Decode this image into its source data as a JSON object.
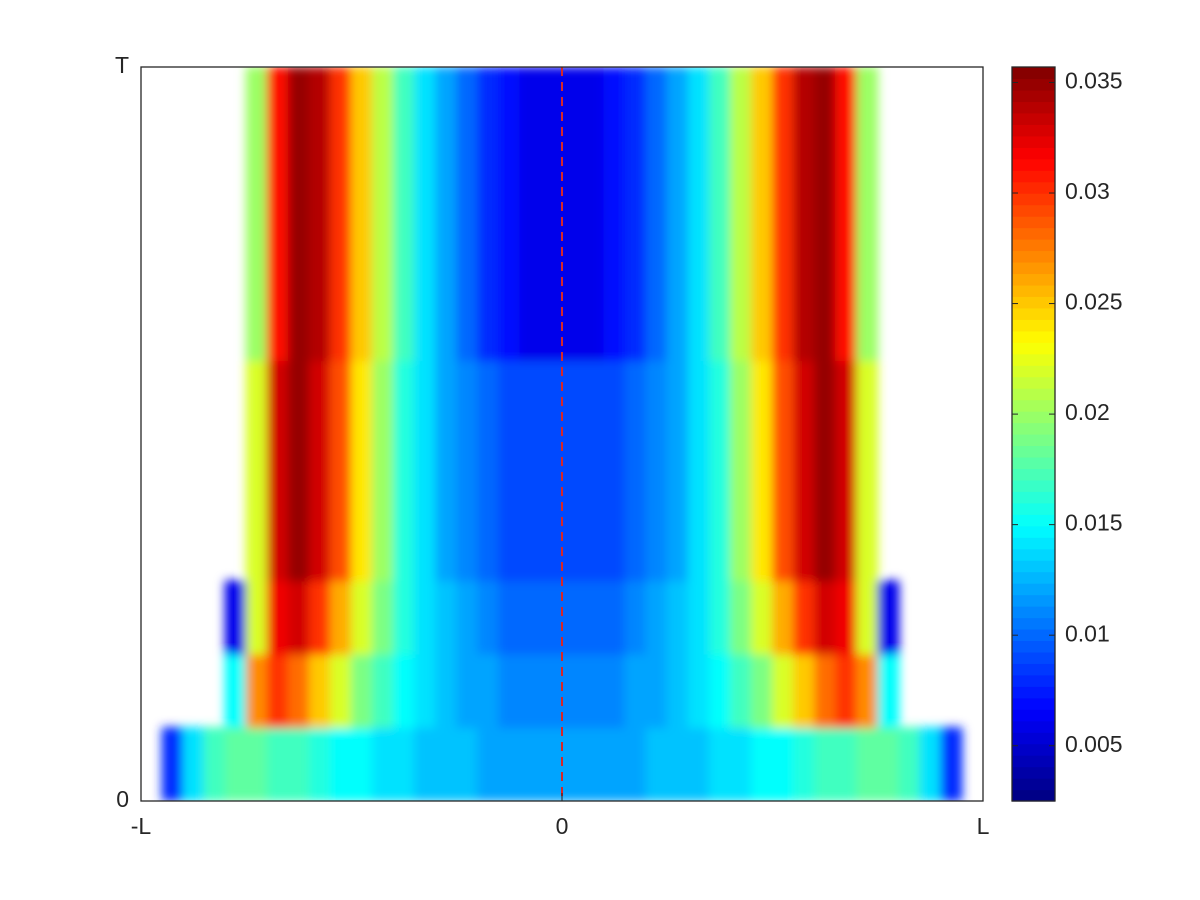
{
  "chart_data": {
    "type": "heatmap",
    "colormap": "jet",
    "xlim": [
      -1,
      1
    ],
    "ylim": [
      0,
      1
    ],
    "xticks": [
      {
        "value": -1,
        "label": "-L"
      },
      0,
      {
        "value": 1,
        "label": "L"
      }
    ],
    "yticks": [
      0,
      {
        "value": 1,
        "label": "T"
      }
    ],
    "clim": [
      0.0025,
      0.0357
    ],
    "cticks": [
      0.005,
      0.01,
      0.015,
      0.02,
      0.025,
      0.03,
      0.035
    ],
    "reference_line_x": 0,
    "reference_line_color": "#d62728",
    "x": [
      -0.975,
      -0.925,
      -0.875,
      -0.825,
      -0.775,
      -0.725,
      -0.675,
      -0.625,
      -0.575,
      -0.525,
      -0.475,
      -0.425,
      -0.375,
      -0.325,
      -0.275,
      -0.225,
      -0.175,
      -0.125,
      -0.075,
      -0.025,
      0.025,
      0.075,
      0.125,
      0.175,
      0.225,
      0.275,
      0.325,
      0.375,
      0.425,
      0.475,
      0.525,
      0.575,
      0.625,
      0.675,
      0.725,
      0.775,
      0.825,
      0.875,
      0.925,
      0.975
    ],
    "y": [
      0.05,
      0.15,
      0.25,
      0.35,
      0.45,
      0.55,
      0.65,
      0.75,
      0.85,
      0.95
    ],
    "z": [
      [
        null,
        0.008,
        0.014,
        0.017,
        0.018,
        0.018,
        0.017,
        0.017,
        0.016,
        0.015,
        0.015,
        0.014,
        0.014,
        0.013,
        0.013,
        0.013,
        0.012,
        0.012,
        0.012,
        0.012,
        0.012,
        0.012,
        0.012,
        0.012,
        0.013,
        0.013,
        0.013,
        0.014,
        0.014,
        0.015,
        0.015,
        0.016,
        0.017,
        0.017,
        0.018,
        0.018,
        0.017,
        0.014,
        0.008,
        null
      ],
      [
        null,
        null,
        null,
        null,
        0.015,
        0.027,
        0.03,
        0.028,
        0.025,
        0.022,
        0.019,
        0.017,
        0.015,
        0.014,
        0.013,
        0.012,
        0.012,
        0.011,
        0.011,
        0.011,
        0.011,
        0.011,
        0.011,
        0.012,
        0.012,
        0.013,
        0.014,
        0.015,
        0.017,
        0.019,
        0.022,
        0.025,
        0.028,
        0.03,
        0.027,
        0.015,
        null,
        null,
        null,
        null
      ],
      [
        null,
        null,
        null,
        null,
        0.006,
        0.022,
        0.032,
        0.033,
        0.03,
        0.026,
        0.022,
        0.019,
        0.016,
        0.014,
        0.013,
        0.012,
        0.011,
        0.01,
        0.01,
        0.01,
        0.01,
        0.01,
        0.01,
        0.011,
        0.012,
        0.013,
        0.014,
        0.016,
        0.019,
        0.022,
        0.026,
        0.03,
        0.033,
        0.032,
        0.022,
        0.006,
        null,
        null,
        null,
        null
      ],
      [
        null,
        null,
        null,
        null,
        null,
        0.022,
        0.033,
        0.035,
        0.033,
        0.029,
        0.024,
        0.02,
        0.016,
        0.014,
        0.012,
        0.011,
        0.01,
        0.009,
        0.009,
        0.009,
        0.009,
        0.009,
        0.009,
        0.01,
        0.011,
        0.012,
        0.014,
        0.016,
        0.02,
        0.024,
        0.029,
        0.033,
        0.035,
        0.033,
        0.022,
        null,
        null,
        null,
        null,
        null
      ],
      [
        null,
        null,
        null,
        null,
        null,
        0.022,
        0.033,
        0.035,
        0.033,
        0.029,
        0.024,
        0.02,
        0.016,
        0.014,
        0.012,
        0.011,
        0.01,
        0.009,
        0.009,
        0.009,
        0.009,
        0.009,
        0.009,
        0.01,
        0.011,
        0.012,
        0.014,
        0.016,
        0.02,
        0.024,
        0.029,
        0.033,
        0.035,
        0.033,
        0.022,
        null,
        null,
        null,
        null,
        null
      ],
      [
        null,
        null,
        null,
        null,
        null,
        0.022,
        0.033,
        0.035,
        0.033,
        0.029,
        0.024,
        0.02,
        0.016,
        0.014,
        0.012,
        0.011,
        0.01,
        0.009,
        0.009,
        0.009,
        0.009,
        0.009,
        0.009,
        0.01,
        0.011,
        0.012,
        0.014,
        0.016,
        0.02,
        0.024,
        0.029,
        0.033,
        0.035,
        0.033,
        0.022,
        null,
        null,
        null,
        null,
        null
      ],
      [
        null,
        null,
        null,
        null,
        null,
        0.02,
        0.031,
        0.035,
        0.034,
        0.03,
        0.025,
        0.021,
        0.017,
        0.014,
        0.012,
        0.01,
        0.008,
        0.007,
        0.006,
        0.006,
        0.006,
        0.006,
        0.007,
        0.008,
        0.01,
        0.012,
        0.014,
        0.017,
        0.021,
        0.025,
        0.03,
        0.034,
        0.035,
        0.031,
        0.02,
        null,
        null,
        null,
        null,
        null
      ],
      [
        null,
        null,
        null,
        null,
        null,
        0.02,
        0.031,
        0.035,
        0.034,
        0.03,
        0.025,
        0.021,
        0.017,
        0.014,
        0.012,
        0.01,
        0.008,
        0.007,
        0.006,
        0.006,
        0.006,
        0.006,
        0.007,
        0.008,
        0.01,
        0.012,
        0.014,
        0.017,
        0.021,
        0.025,
        0.03,
        0.034,
        0.035,
        0.031,
        0.02,
        null,
        null,
        null,
        null,
        null
      ],
      [
        null,
        null,
        null,
        null,
        null,
        0.02,
        0.031,
        0.035,
        0.034,
        0.03,
        0.025,
        0.021,
        0.017,
        0.014,
        0.012,
        0.01,
        0.008,
        0.007,
        0.006,
        0.006,
        0.006,
        0.006,
        0.007,
        0.008,
        0.01,
        0.012,
        0.014,
        0.017,
        0.021,
        0.025,
        0.03,
        0.034,
        0.035,
        0.031,
        0.02,
        null,
        null,
        null,
        null,
        null
      ],
      [
        null,
        null,
        null,
        null,
        null,
        0.02,
        0.031,
        0.035,
        0.034,
        0.03,
        0.025,
        0.021,
        0.017,
        0.014,
        0.012,
        0.01,
        0.008,
        0.007,
        0.006,
        0.006,
        0.006,
        0.006,
        0.007,
        0.008,
        0.01,
        0.012,
        0.014,
        0.017,
        0.021,
        0.025,
        0.03,
        0.034,
        0.035,
        0.031,
        0.02,
        null,
        null,
        null,
        null,
        null
      ]
    ]
  }
}
